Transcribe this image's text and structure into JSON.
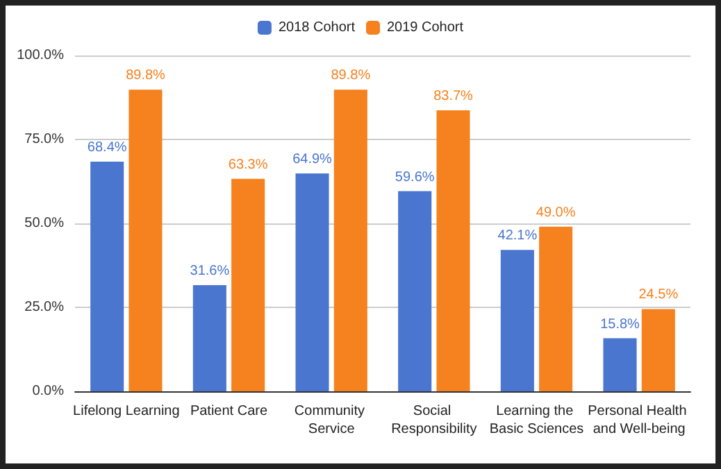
{
  "chart_data": {
    "type": "bar",
    "categories": [
      "Lifelong Learning",
      "Patient Care",
      "Community Service",
      "Social Responsibility",
      "Learning the Basic Sciences",
      "Personal Health and Well-being"
    ],
    "series": [
      {
        "name": "2018 Cohort",
        "color": "#4a76d0",
        "values": [
          68.4,
          31.6,
          64.9,
          59.6,
          42.1,
          15.8
        ],
        "value_labels": [
          "68.4%",
          "31.6%",
          "64.9%",
          "59.6%",
          "42.1%",
          "15.8%"
        ]
      },
      {
        "name": "2019 Cohort",
        "color": "#f5821f",
        "values": [
          89.8,
          63.3,
          89.8,
          83.7,
          49.0,
          24.5
        ],
        "value_labels": [
          "89.8%",
          "63.3%",
          "89.8%",
          "83.7%",
          "49.0%",
          "24.5%"
        ]
      }
    ],
    "ylim": [
      0,
      100
    ],
    "yticks": [
      {
        "value": 0,
        "label": "0.0%"
      },
      {
        "value": 25,
        "label": "25.0%"
      },
      {
        "value": 50,
        "label": "50.0%"
      },
      {
        "value": 75,
        "label": "75.0%"
      },
      {
        "value": 100,
        "label": "100.0%"
      }
    ],
    "grid": "y",
    "legend": "top"
  }
}
